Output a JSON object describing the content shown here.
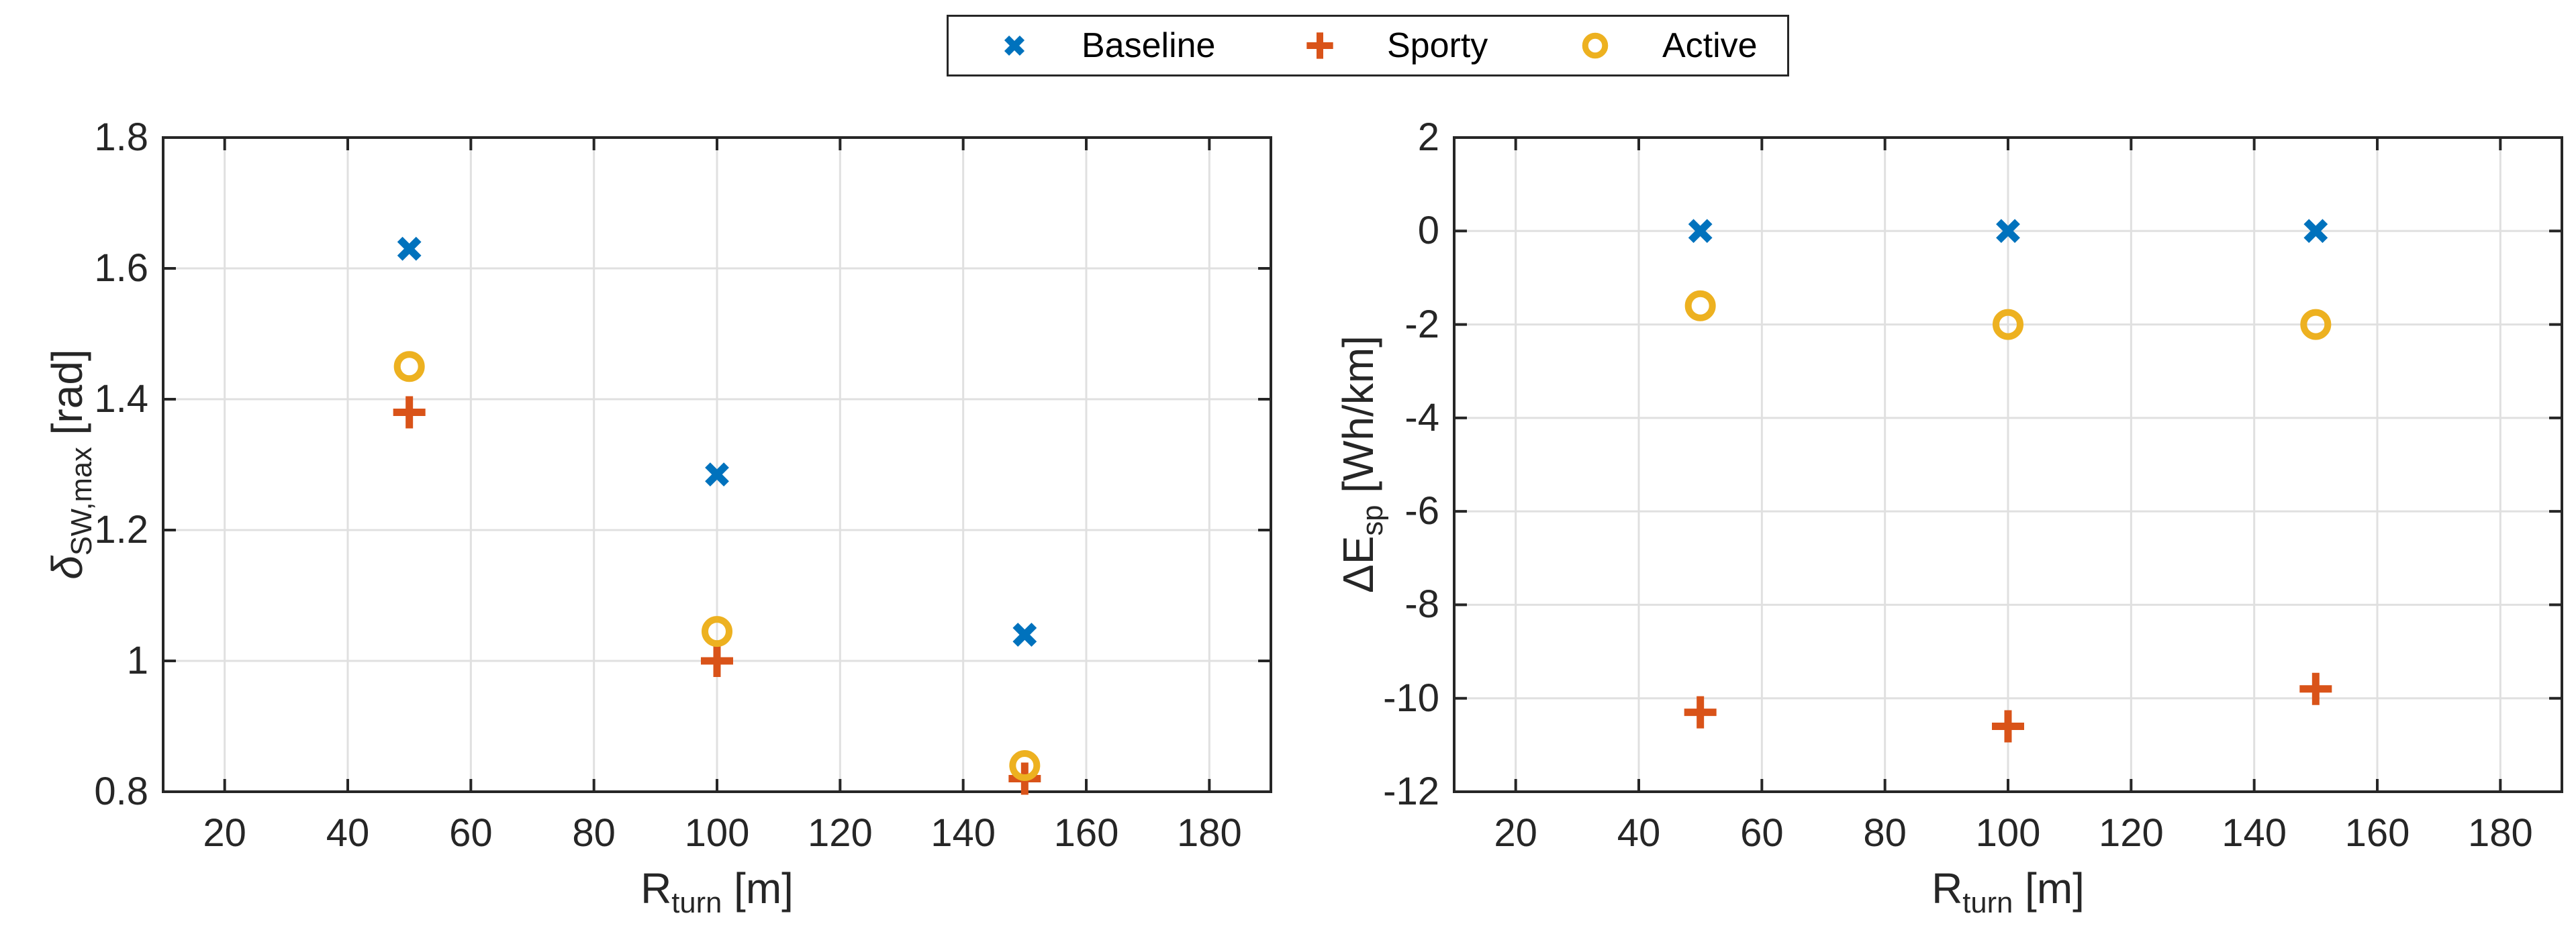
{
  "figure": {
    "background": "#ffffff",
    "axis_color": "#262626",
    "grid_color": "#e0e0e0"
  },
  "legend": {
    "items": [
      {
        "label": "Baseline",
        "marker": "x",
        "color": "#0072BD"
      },
      {
        "label": "Sporty",
        "marker": "plus",
        "color": "#D95319"
      },
      {
        "label": "Active",
        "marker": "o",
        "color": "#EDB120"
      }
    ]
  },
  "chart_data": [
    {
      "type": "scatter",
      "title": "",
      "xlabel": {
        "pre": "R",
        "sub": "turn",
        "post": " [m]"
      },
      "ylabel": {
        "pre": "δ",
        "pre_italic": true,
        "sub": "SW,max",
        "post": " [rad]"
      },
      "xlim": [
        10,
        190
      ],
      "ylim": [
        0.8,
        1.8
      ],
      "xticks": [
        20,
        40,
        60,
        80,
        100,
        120,
        140,
        160,
        180
      ],
      "yticks": [
        0.8,
        1.0,
        1.2,
        1.4,
        1.6,
        1.8
      ],
      "xtick_labels": [
        "20",
        "40",
        "60",
        "80",
        "100",
        "120",
        "140",
        "160",
        "180"
      ],
      "ytick_labels": [
        "0.8",
        "1",
        "1.2",
        "1.4",
        "1.6",
        "1.8"
      ],
      "grid": true,
      "legend_position": "top-outside-shared",
      "x": [
        50,
        100,
        150
      ],
      "series": [
        {
          "name": "Baseline",
          "marker": "x",
          "color": "#0072BD",
          "values": [
            1.63,
            1.285,
            1.04
          ]
        },
        {
          "name": "Sporty",
          "marker": "plus",
          "color": "#D95319",
          "values": [
            1.38,
            1.0,
            0.82
          ]
        },
        {
          "name": "Active",
          "marker": "o",
          "color": "#EDB120",
          "values": [
            1.45,
            1.045,
            0.84
          ]
        }
      ]
    },
    {
      "type": "scatter",
      "title": "",
      "xlabel": {
        "pre": "R",
        "sub": "turn",
        "post": " [m]"
      },
      "ylabel": {
        "pre": "ΔE",
        "pre_italic": false,
        "sub": "sp",
        "post": " [Wh/km]"
      },
      "xlim": [
        10,
        190
      ],
      "ylim": [
        -12,
        2
      ],
      "xticks": [
        20,
        40,
        60,
        80,
        100,
        120,
        140,
        160,
        180
      ],
      "yticks": [
        -12,
        -10,
        -8,
        -6,
        -4,
        -2,
        0,
        2
      ],
      "xtick_labels": [
        "20",
        "40",
        "60",
        "80",
        "100",
        "120",
        "140",
        "160",
        "180"
      ],
      "ytick_labels": [
        "-12",
        "-10",
        "-8",
        "-6",
        "-4",
        "-2",
        "0",
        "2"
      ],
      "grid": true,
      "legend_position": "top-outside-shared",
      "x": [
        50,
        100,
        150
      ],
      "series": [
        {
          "name": "Baseline",
          "marker": "x",
          "color": "#0072BD",
          "values": [
            0.0,
            0.0,
            0.0
          ]
        },
        {
          "name": "Sporty",
          "marker": "plus",
          "color": "#D95319",
          "values": [
            -10.3,
            -10.6,
            -9.8
          ]
        },
        {
          "name": "Active",
          "marker": "o",
          "color": "#EDB120",
          "values": [
            -1.6,
            -2.0,
            -2.0
          ]
        }
      ]
    }
  ]
}
